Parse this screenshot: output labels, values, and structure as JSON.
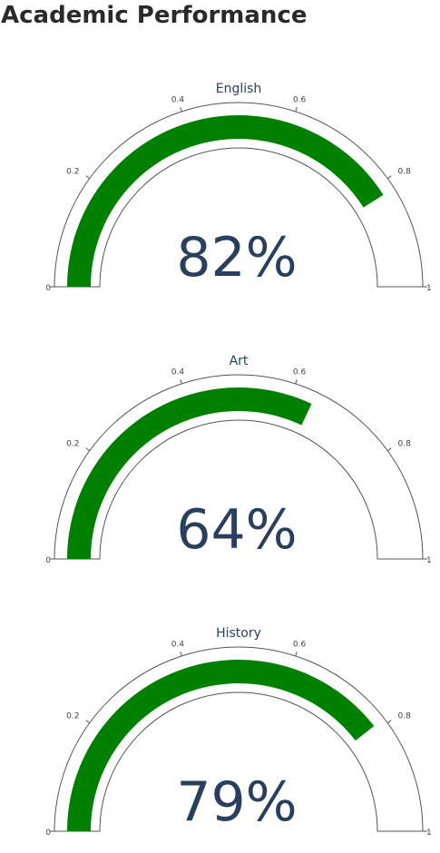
{
  "page": {
    "title": "Academic Performance"
  },
  "colors": {
    "bar": "#008000",
    "outline": "#555555",
    "value_text": "#2a3f5f",
    "title_text": "#2a3f5f",
    "tick_text": "#444444"
  },
  "chart_data": [
    {
      "type": "gauge",
      "title": "English",
      "value": 0.82,
      "value_label": "82%",
      "range": [
        0,
        1
      ],
      "ticks": [
        {
          "value": 0,
          "label": "0"
        },
        {
          "value": 0.2,
          "label": "0.2"
        },
        {
          "value": 0.4,
          "label": "0.4"
        },
        {
          "value": 0.6,
          "label": "0.6"
        },
        {
          "value": 0.8,
          "label": "0.8"
        },
        {
          "value": 1,
          "label": "1"
        }
      ]
    },
    {
      "type": "gauge",
      "title": "Art",
      "value": 0.64,
      "value_label": "64%",
      "range": [
        0,
        1
      ],
      "ticks": [
        {
          "value": 0,
          "label": "0"
        },
        {
          "value": 0.2,
          "label": "0.2"
        },
        {
          "value": 0.4,
          "label": "0.4"
        },
        {
          "value": 0.6,
          "label": "0.6"
        },
        {
          "value": 0.8,
          "label": "0.8"
        },
        {
          "value": 1,
          "label": "1"
        }
      ]
    },
    {
      "type": "gauge",
      "title": "History",
      "value": 0.79,
      "value_label": "79%",
      "range": [
        0,
        1
      ],
      "ticks": [
        {
          "value": 0,
          "label": "0"
        },
        {
          "value": 0.2,
          "label": "0.2"
        },
        {
          "value": 0.4,
          "label": "0.4"
        },
        {
          "value": 0.6,
          "label": "0.6"
        },
        {
          "value": 0.8,
          "label": "0.8"
        },
        {
          "value": 1,
          "label": "1"
        }
      ]
    }
  ]
}
